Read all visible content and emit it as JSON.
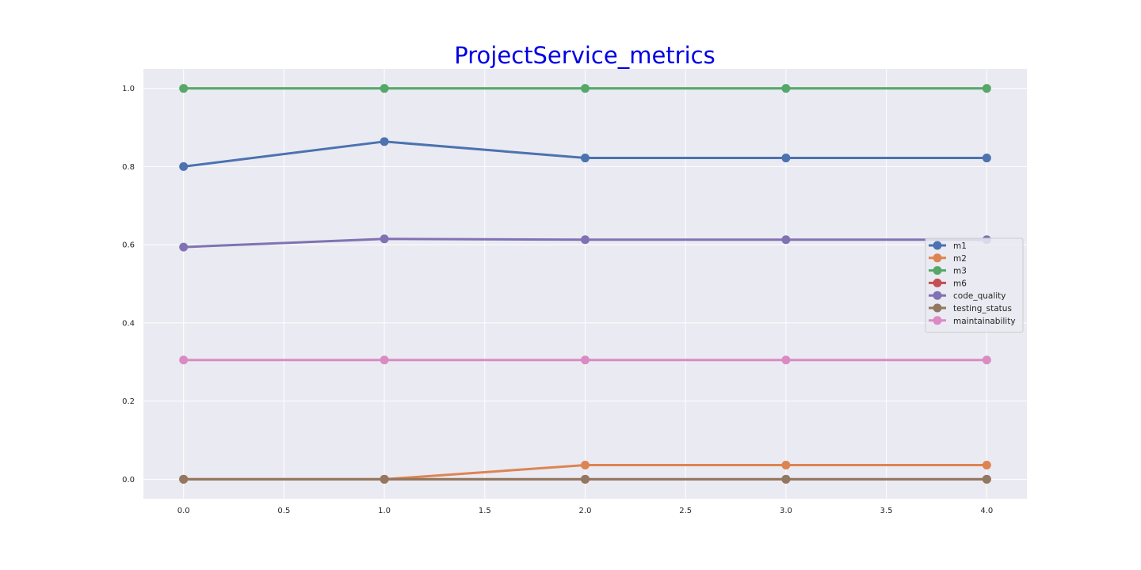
{
  "colors": {
    "title": "#0000e6",
    "plot_background": "#eaeaf2",
    "grid": "#ffffff",
    "m1": "#4c72b0",
    "m2": "#dd8452",
    "m3": "#55a868",
    "m6": "#c44e52",
    "code_quality": "#8172b3",
    "testing_status": "#937860",
    "maintainability": "#da8bc3"
  },
  "chart_data": {
    "type": "line",
    "title": "ProjectService_metrics",
    "xlabel": "",
    "ylabel": "",
    "x": [
      0,
      1,
      2,
      3,
      4
    ],
    "xlim": [
      -0.2,
      4.2
    ],
    "ylim": [
      -0.05,
      1.05
    ],
    "x_ticks": [
      "0.0",
      "0.5",
      "1.0",
      "1.5",
      "2.0",
      "2.5",
      "3.0",
      "3.5",
      "4.0"
    ],
    "y_ticks": [
      "0.0",
      "0.2",
      "0.4",
      "0.6",
      "0.8",
      "1.0"
    ],
    "grid": true,
    "legend_position": "center-right",
    "series": [
      {
        "name": "m1",
        "values": [
          0.8,
          0.864,
          0.822,
          0.822,
          0.822
        ]
      },
      {
        "name": "m2",
        "values": [
          0.0,
          0.0,
          0.036,
          0.036,
          0.036
        ]
      },
      {
        "name": "m3",
        "values": [
          1.0,
          1.0,
          1.0,
          1.0,
          1.0
        ]
      },
      {
        "name": "m6",
        "values": [
          0.0,
          0.0,
          0.0,
          0.0,
          0.0
        ]
      },
      {
        "name": "code_quality",
        "values": [
          0.594,
          0.615,
          0.613,
          0.613,
          0.613
        ]
      },
      {
        "name": "testing_status",
        "values": [
          0.0,
          0.0,
          0.0,
          0.0,
          0.0
        ]
      },
      {
        "name": "maintainability",
        "values": [
          0.305,
          0.305,
          0.305,
          0.305,
          0.305
        ]
      }
    ]
  }
}
